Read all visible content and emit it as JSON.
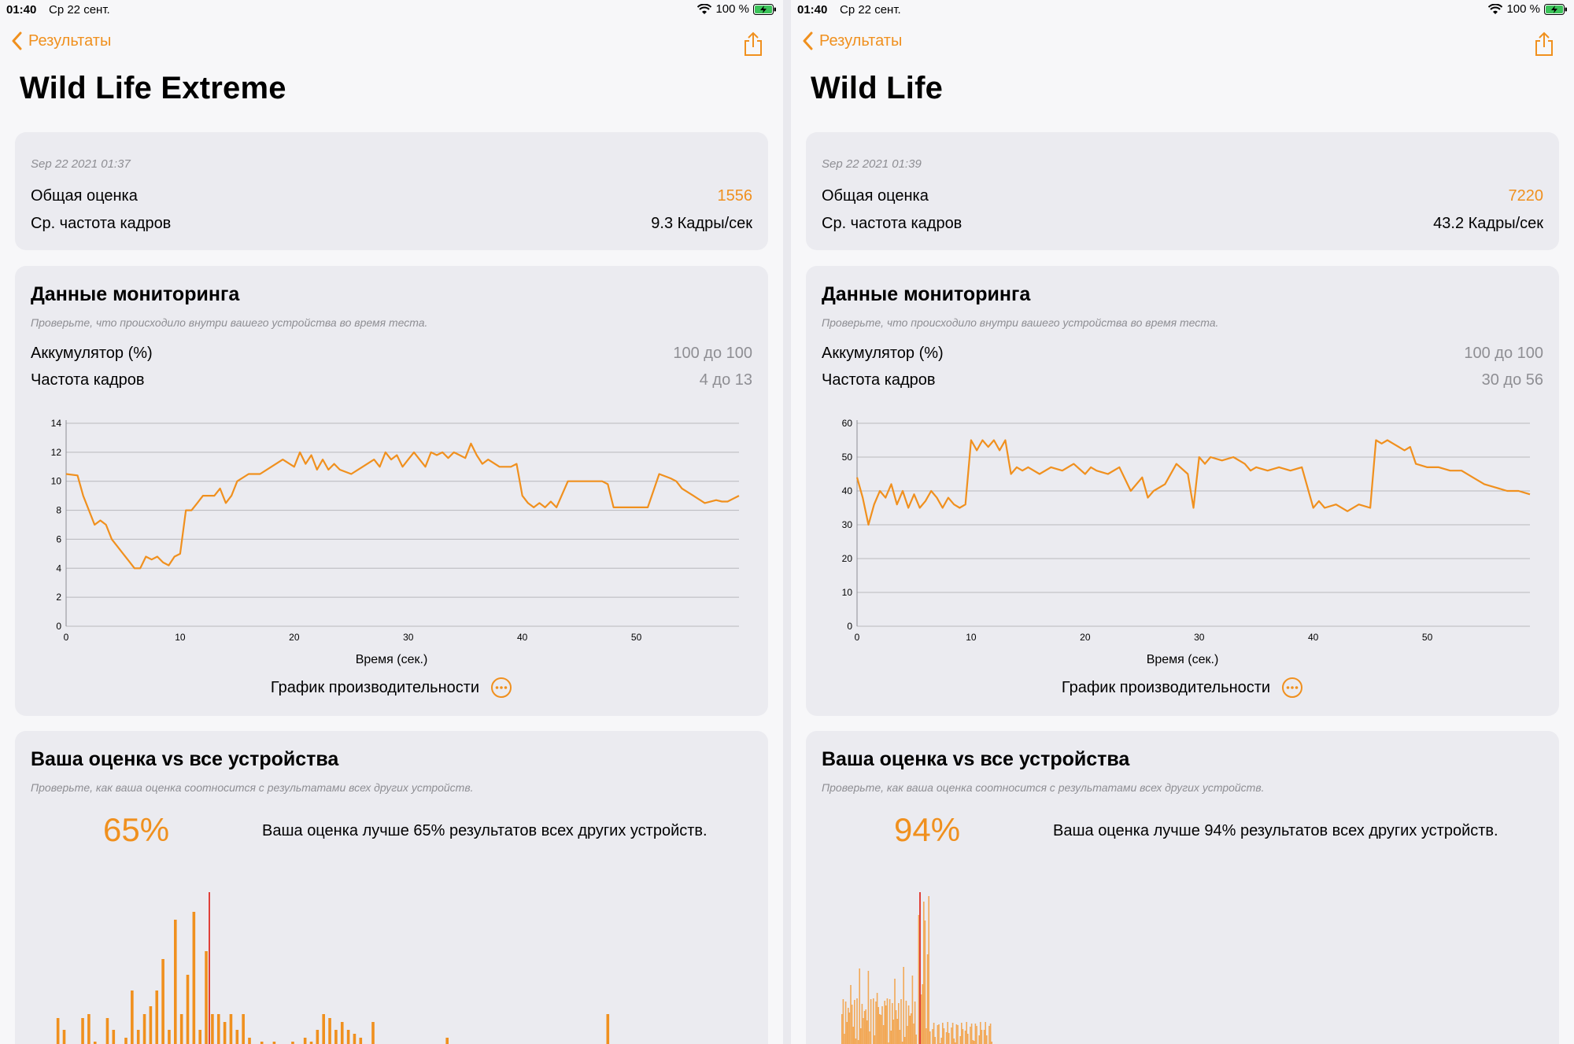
{
  "panes": [
    {
      "status": {
        "time": "01:40",
        "date": "Ср 22 сент.",
        "battery": "100 %"
      },
      "back_label": "Результаты",
      "title": "Wild Life Extreme",
      "summary": {
        "timestamp": "Sep 22 2021 01:37",
        "score_label": "Общая оценка",
        "score_value": "1556",
        "fps_label": "Ср. частота кадров",
        "fps_value": "9.3 Кадры/сек"
      },
      "monitoring": {
        "heading": "Данные мониторинга",
        "subtitle": "Проверьте, что происходило внутри вашего устройства во время теста.",
        "battery_label": "Аккумулятор (%)",
        "battery_range": "100 до 100",
        "fps_label": "Частота кадров",
        "fps_range": "4 до 13",
        "xaxis_title": "Время (сек.)",
        "perf_label": "График производительности"
      },
      "compare": {
        "heading": "Ваша оценка vs все устройства",
        "subtitle": "Проверьте, как ваша оценка соотносится с результатами всех других устройств.",
        "percent": "65%",
        "text": "Ваша оценка лучше 65% результатов всех других устройств."
      }
    },
    {
      "status": {
        "time": "01:40",
        "date": "Ср 22 сент.",
        "battery": "100 %"
      },
      "back_label": "Результаты",
      "title": "Wild Life",
      "summary": {
        "timestamp": "Sep 22 2021 01:39",
        "score_label": "Общая оценка",
        "score_value": "7220",
        "fps_label": "Ср. частота кадров",
        "fps_value": "43.2 Кадры/сек"
      },
      "monitoring": {
        "heading": "Данные мониторинга",
        "subtitle": "Проверьте, что происходило внутри вашего устройства во время теста.",
        "battery_label": "Аккумулятор (%)",
        "battery_range": "100 до 100",
        "fps_label": "Частота кадров",
        "fps_range": "30 до 56",
        "xaxis_title": "Время (сек.)",
        "perf_label": "График производительности"
      },
      "compare": {
        "heading": "Ваша оценка vs все устройства",
        "subtitle": "Проверьте, как ваша оценка соотносится с результатами всех других устройств.",
        "percent": "94%",
        "text": "Ваша оценка лучше 94% результатов всех других устройств."
      }
    }
  ],
  "colors": {
    "accent": "#f0901e",
    "marker": "#e0403a",
    "grid": "#b8b8bc"
  },
  "chart_data": [
    {
      "type": "line",
      "legend": "Кадры/сек",
      "xlim": [
        0,
        59
      ],
      "ylim": [
        0,
        14
      ],
      "xticks": [
        0,
        10,
        20,
        30,
        40,
        50
      ],
      "yticks": [
        0,
        2,
        4,
        6,
        8,
        10,
        12,
        14
      ],
      "series": [
        {
          "name": "Кадры/сек",
          "x": [
            0,
            1,
            1.5,
            2,
            2.5,
            3,
            3.5,
            4,
            4.5,
            5,
            5.5,
            6,
            6.5,
            7,
            7.5,
            8,
            8.5,
            9,
            9.5,
            10,
            10.5,
            11,
            11.5,
            12,
            12.5,
            13,
            13.5,
            14,
            14.5,
            15,
            16,
            17,
            18,
            19,
            20,
            20.5,
            21,
            21.5,
            22,
            22.5,
            23,
            23.5,
            24,
            25,
            26,
            27,
            27.5,
            28,
            28.5,
            29,
            29.5,
            30,
            30.5,
            31,
            31.5,
            32,
            32.5,
            33,
            33.5,
            34,
            34.5,
            35,
            35.5,
            36,
            36.5,
            37,
            38,
            39,
            39.5,
            40,
            40.5,
            41,
            41.5,
            42,
            42.5,
            43,
            44,
            45,
            46,
            47,
            47.5,
            48,
            49,
            50,
            51,
            52,
            53,
            53.5,
            54,
            55,
            56,
            57,
            57.5,
            58,
            59
          ],
          "y": [
            10.5,
            10.4,
            9,
            8,
            7,
            7.3,
            7,
            6,
            5.5,
            5,
            4.5,
            4,
            4,
            4.8,
            4.6,
            4.8,
            4.4,
            4.2,
            4.8,
            5,
            8,
            8,
            8.5,
            9,
            9,
            9,
            9.5,
            8.5,
            9,
            10,
            10.5,
            10.5,
            11,
            11.5,
            11,
            12,
            11.2,
            11.8,
            10.8,
            11.5,
            10.8,
            11.2,
            10.8,
            10.5,
            11,
            11.5,
            11,
            12,
            11.5,
            11.8,
            11,
            11.5,
            12,
            11.5,
            11,
            12,
            11.8,
            12,
            11.6,
            12,
            11.8,
            11.6,
            12.6,
            11.8,
            11.2,
            11.5,
            11,
            11,
            11.2,
            9,
            8.5,
            8.2,
            8.5,
            8.2,
            8.6,
            8.2,
            10,
            10,
            10,
            10,
            9.8,
            8.2,
            8.2,
            8.2,
            8.2,
            10.5,
            10.2,
            10,
            9.5,
            9,
            8.5,
            8.7,
            8.6,
            8.6,
            9
          ]
        }
      ]
    },
    {
      "type": "line",
      "legend": "Кадры/сек",
      "xlim": [
        0,
        59
      ],
      "ylim": [
        0,
        60
      ],
      "xticks": [
        0,
        10,
        20,
        30,
        40,
        50
      ],
      "yticks": [
        0,
        10,
        20,
        30,
        40,
        50,
        60
      ],
      "series": [
        {
          "name": "Кадры/сек",
          "x": [
            0,
            0.5,
            1,
            1.5,
            2,
            2.5,
            3,
            3.5,
            4,
            4.5,
            5,
            5.5,
            6,
            6.5,
            7,
            7.5,
            8,
            8.5,
            9,
            9.5,
            10,
            10.5,
            11,
            11.5,
            12,
            12.5,
            13,
            13.5,
            14,
            14.5,
            15,
            16,
            17,
            18,
            19,
            20,
            20.5,
            21,
            22,
            23,
            24,
            25,
            25.5,
            26,
            27,
            28,
            29,
            29.5,
            30,
            30.5,
            31,
            32,
            33,
            34,
            34.5,
            35,
            36,
            37,
            38,
            39,
            40,
            40.5,
            41,
            42,
            43,
            44,
            45,
            45.5,
            46,
            46.5,
            47,
            48,
            48.5,
            49,
            50,
            51,
            52,
            53,
            54,
            55,
            56,
            57,
            58,
            59
          ],
          "y": [
            44,
            38,
            30,
            36,
            40,
            38,
            42,
            36,
            40,
            35,
            39,
            35,
            37,
            40,
            38,
            35,
            38,
            36,
            35,
            36,
            55,
            52,
            55,
            53,
            55,
            52,
            55,
            45,
            47,
            46,
            47,
            45,
            47,
            46,
            48,
            45,
            47,
            46,
            45,
            47,
            40,
            44,
            38,
            40,
            42,
            48,
            45,
            35,
            50,
            48,
            50,
            49,
            50,
            48,
            46,
            47,
            46,
            47,
            46,
            47,
            35,
            37,
            35,
            36,
            34,
            36,
            35,
            55,
            54,
            55,
            54,
            52,
            53,
            48,
            47,
            47,
            46,
            46,
            44,
            42,
            41,
            40,
            40,
            39
          ]
        }
      ]
    }
  ]
}
